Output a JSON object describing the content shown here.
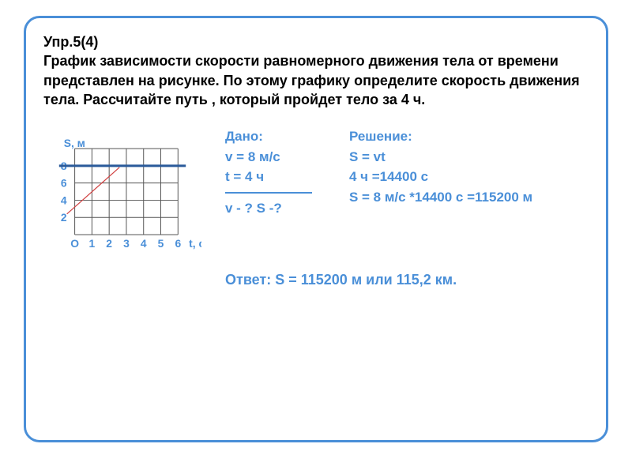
{
  "problem": {
    "title": "Упр.5(4)",
    "text": "График зависимости скорости равномерного движения тела от времени  представлен на рисунке. По этому графику определите скорость движения тела. Рассчитайте путь , который пройдет тело за 4 ч."
  },
  "chart": {
    "type": "line",
    "y_label": "S, м",
    "x_label": "t, c",
    "y_ticks": [
      2,
      4,
      6,
      8
    ],
    "x_ticks": [
      0,
      1,
      2,
      3,
      4,
      5,
      6
    ],
    "x_origin_label": "О",
    "grid_color": "#555555",
    "line_color": "#2a5a9a",
    "line_width": 3,
    "pointer_color": "#d04040",
    "line_y_value": 8,
    "cell_size": 22,
    "background_color": "#ffffff",
    "font_size": 14,
    "text_color": "#4a8fd8"
  },
  "given": {
    "heading": "Дано:",
    "line1": "v  = 8 м/с",
    "line2": "t = 4 ч",
    "question": "v - ? S -?"
  },
  "solution": {
    "heading": "Решение:",
    "line1": "S = vt",
    "line2": "4 ч =14400 с",
    "line3": "S = 8 м/с *14400 с =115200 м"
  },
  "answer": {
    "text": "Ответ: S = 115200 м  или  115,2 км."
  },
  "style": {
    "accent_color": "#4a8fd8",
    "text_color": "#000000"
  }
}
